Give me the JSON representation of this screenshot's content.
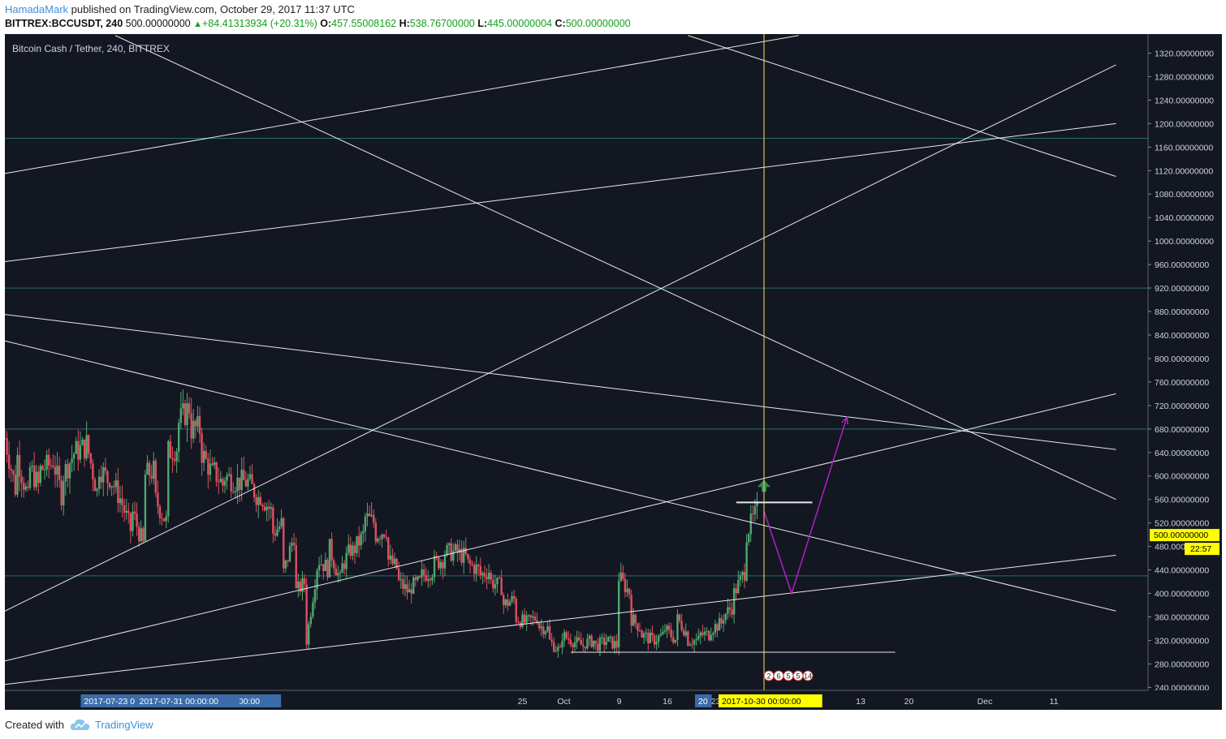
{
  "header": {
    "author": "HamadaMark",
    "published_text": "published on TradingView.com, October 29, 2017 11:37 UTC",
    "symbol": "BITTREX:BCCUSDT, 240",
    "last": "500.00000000",
    "change": "+84.41313934 (+20.31%)",
    "open_label": "O:",
    "open": "457.55008162",
    "high_label": "H:",
    "high": "538.76700000",
    "low_label": "L:",
    "low": "445.00000004",
    "close_label": "C:",
    "close": "500.00000000"
  },
  "footer": {
    "created_text": "Created with",
    "brand": "TradingView"
  },
  "colors": {
    "background": "#131722",
    "price_axis_text": "#cfd3dc",
    "trendline": "#ffffff",
    "cursor_line": "#f5e663",
    "horizontal_level": "#2a6b6d",
    "projection": "#b21fc4",
    "candle_up": "#4fa86e",
    "candle_down": "#e04f5f",
    "last_price_badge": "#ffff00",
    "date_badge": "#3b6ca8",
    "cursor_date_badge": "#ffff00"
  },
  "chart_data": {
    "type": "candlestick",
    "title": "Bitcoin Cash / Tether, 240, BITTREX",
    "xlabel": "",
    "ylabel": "",
    "ylim": [
      235,
      1340
    ],
    "y_ticks": [
      "1320.00000000",
      "1280.00000000",
      "1240.00000000",
      "1200.00000000",
      "1160.00000000",
      "1120.00000000",
      "1080.00000000",
      "1040.00000000",
      "1000.00000000",
      "960.00000000",
      "920.00000000",
      "880.00000000",
      "840.00000000",
      "800.00000000",
      "760.00000000",
      "720.00000000",
      "680.00000000",
      "640.00000000",
      "600.00000000",
      "560.00000000",
      "520.00000000",
      "480.00000000",
      "440.00000000",
      "400.00000000",
      "360.00000000",
      "320.00000000",
      "280.00000000",
      "240.00000000"
    ],
    "x_ticks": [
      {
        "label": "25",
        "x": "2017-09-25"
      },
      {
        "label": "Oct",
        "x": "2017-10-01"
      },
      {
        "label": "9",
        "x": "2017-10-09"
      },
      {
        "label": "16",
        "x": "2017-10-16"
      },
      {
        "label": "23",
        "x": "2017-10-23"
      },
      {
        "label": "7",
        "x": "2017-11-07"
      },
      {
        "label": "13",
        "x": "2017-11-13"
      },
      {
        "label": "20",
        "x": "2017-11-20"
      },
      {
        "label": "Dec",
        "x": "2017-12-01"
      },
      {
        "label": "11",
        "x": "2017-12-11"
      }
    ],
    "x_badges": [
      {
        "label": "2017-08-06 00:00:00",
        "x": "2017-08-06"
      },
      {
        "label": "2017-07-23 0",
        "x": "2017-07-23"
      },
      {
        "label": "2017-07-31 00:00:00",
        "x": "2017-07-31"
      },
      {
        "label": "20",
        "x": "2017-10-20"
      },
      {
        "label": "00",
        "x": "2017-11-04"
      }
    ],
    "cursor_date": {
      "label": "2017-10-30 00:00:00",
      "x": "2017-10-30"
    },
    "last_price": {
      "label": "500.00000000",
      "value": 500
    },
    "countdown": "22:57",
    "event_markers": [
      "2",
      "6",
      "5",
      "5",
      "14"
    ],
    "price_path": [
      [
        665,
        570
      ],
      [
        640,
        560
      ],
      [
        620,
        580
      ],
      [
        610,
        620
      ],
      [
        640,
        560
      ],
      [
        600,
        640
      ],
      [
        640,
        650
      ],
      [
        660,
        570
      ],
      [
        620,
        590
      ],
      [
        600,
        560
      ],
      [
        560,
        500
      ],
      [
        540,
        480
      ],
      [
        600,
        610
      ],
      [
        560,
        520
      ],
      [
        640,
        650
      ],
      [
        690,
        720
      ],
      [
        680,
        680
      ],
      [
        640,
        600
      ],
      [
        610,
        580
      ],
      [
        600,
        590
      ],
      [
        590,
        590
      ],
      [
        590,
        560
      ],
      [
        570,
        540
      ],
      [
        500,
        520
      ],
      [
        430,
        500
      ],
      [
        400,
        420
      ],
      [
        310,
        450
      ],
      [
        460,
        440
      ],
      [
        480,
        420
      ],
      [
        440,
        480
      ],
      [
        470,
        500
      ],
      [
        530,
        520
      ],
      [
        500,
        510
      ],
      [
        460,
        440
      ],
      [
        420,
        400
      ],
      [
        410,
        420
      ],
      [
        430,
        440
      ],
      [
        450,
        460
      ],
      [
        470,
        470
      ],
      [
        470,
        460
      ],
      [
        450,
        440
      ],
      [
        430,
        440
      ],
      [
        420,
        410
      ],
      [
        380,
        390
      ],
      [
        360,
        350
      ],
      [
        350,
        360
      ],
      [
        345,
        340
      ],
      [
        320,
        300
      ],
      [
        330,
        320
      ],
      [
        320,
        310
      ],
      [
        315,
        320
      ],
      [
        310,
        320
      ],
      [
        320,
        310
      ],
      [
        430,
        400
      ],
      [
        360,
        340
      ],
      [
        330,
        320
      ],
      [
        320,
        330
      ],
      [
        340,
        320
      ],
      [
        360,
        330
      ],
      [
        320,
        320
      ],
      [
        330,
        330
      ],
      [
        340,
        350
      ],
      [
        360,
        380
      ],
      [
        400,
        440
      ],
      [
        500,
        540
      ],
      [
        460,
        500
      ]
    ],
    "horizontal_levels": [
      1175,
      920,
      680,
      430
    ],
    "annotations": [
      {
        "type": "trendline",
        "from": [
          "2017-07-12",
          1115
        ],
        "to": [
          "2017-11-04",
          1350
        ]
      },
      {
        "type": "trendline",
        "from": [
          "2017-07-12",
          965
        ],
        "to": [
          "2017-12-20",
          1200
        ]
      },
      {
        "type": "trendline",
        "from": [
          "2017-07-12",
          370
        ],
        "to": [
          "2017-12-20",
          1300
        ]
      },
      {
        "type": "trendline",
        "from": [
          "2017-07-12",
          285
        ],
        "to": [
          "2017-12-20",
          740
        ]
      },
      {
        "type": "trendline",
        "from": [
          "2017-07-12",
          245
        ],
        "to": [
          "2017-12-20",
          465
        ]
      },
      {
        "type": "trendline",
        "from": [
          "2017-07-12",
          875
        ],
        "to": [
          "2017-12-20",
          645
        ]
      },
      {
        "type": "trendline",
        "from": [
          "2017-07-12",
          830
        ],
        "to": [
          "2017-12-20",
          370
        ]
      },
      {
        "type": "trendline",
        "from": [
          "2017-07-28",
          1350
        ],
        "to": [
          "2017-12-20",
          560
        ]
      },
      {
        "type": "trendline",
        "from": [
          "2017-10-19",
          1350
        ],
        "to": [
          "2017-12-20",
          1110
        ]
      },
      {
        "type": "hline",
        "from": [
          "2017-10-02",
          300
        ],
        "to": [
          "2017-11-18",
          300
        ]
      },
      {
        "type": "hline",
        "from": [
          "2017-10-26",
          555
        ],
        "to": [
          "2017-11-06",
          555
        ]
      },
      {
        "type": "projection",
        "points": [
          [
            "2017-10-30",
            540
          ],
          [
            "2017-11-03",
            400
          ],
          [
            "2017-11-11",
            700
          ]
        ]
      },
      {
        "type": "arrow_up",
        "at": [
          "2017-10-30",
          580
        ]
      }
    ]
  }
}
